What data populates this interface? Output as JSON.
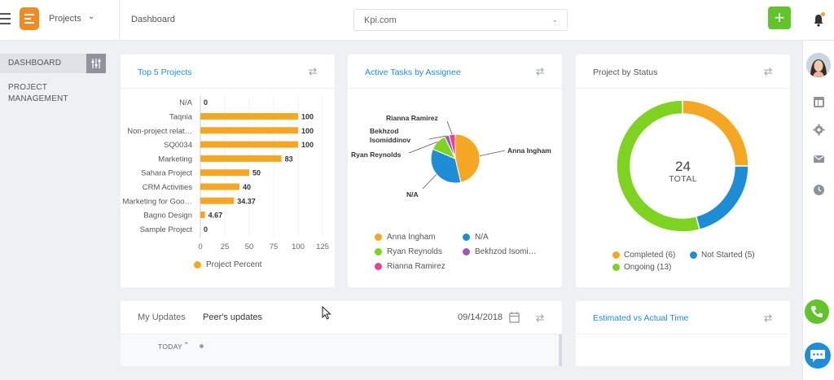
{
  "header": {
    "project_selector": "Projects",
    "breadcrumb": "Dashboard",
    "site_selector": "Kpi.com",
    "add_label": "+"
  },
  "sidebar": {
    "items": [
      {
        "label": "DASHBOARD",
        "active": true
      },
      {
        "label": "PROJECT MANAGEMENT",
        "active": false
      }
    ]
  },
  "cards": {
    "top_projects": {
      "title": "Top 5 Projects",
      "legend": "Project Percent",
      "bar_color": "#f5a623"
    },
    "active_tasks": {
      "title": "Active Tasks by Assignee",
      "legend": [
        {
          "label": "Anna Ingham",
          "color": "#f5a623"
        },
        {
          "label": "N/A",
          "color": "#1f8dd6"
        },
        {
          "label": "Ryan Reynolds",
          "color": "#7ed321"
        },
        {
          "label": "Bekhzod Isomi…",
          "color": "#9b59b6"
        },
        {
          "label": "Rianna Ramirez",
          "color": "#e84393"
        }
      ]
    },
    "project_status": {
      "title": "Project by Status",
      "total_value": "24",
      "total_label": "TOTAL",
      "legend": [
        {
          "label": "Completed (6)",
          "color": "#f5a623"
        },
        {
          "label": "Not Started (5)",
          "color": "#1f8dd6"
        },
        {
          "label": "Ongoing (13)",
          "color": "#7ed321"
        }
      ]
    },
    "updates": {
      "tab_mine": "My Updates",
      "tab_peers": "Peer's updates",
      "date": "09/14/2018",
      "today_label": "TODAY"
    },
    "estimated": {
      "title": "Estimated vs Actual Time"
    }
  },
  "chart_data": [
    {
      "type": "bar",
      "orientation": "horizontal",
      "categories": [
        "N/A",
        "Taqnia",
        "Non-project relat…",
        "SQ0034",
        "Marketing",
        "Sahara Project",
        "CRM Activities",
        "Marketing for Goo…",
        "Bagno Design",
        "Sample Project"
      ],
      "values": [
        0,
        100,
        100,
        100,
        83,
        50,
        40,
        34.37,
        4.67,
        0
      ],
      "data_labels": [
        "0",
        "100",
        "100",
        "100",
        "83",
        "50",
        "40",
        "34.37",
        "4.67",
        "0"
      ],
      "xlim": [
        0,
        125
      ],
      "xticks": [
        "0",
        "25",
        "50",
        "75",
        "100",
        "125"
      ],
      "series": [
        {
          "name": "Project Percent",
          "color": "#f5a623"
        }
      ],
      "grid": true
    },
    {
      "type": "pie",
      "slices": [
        {
          "label": "Anna Ingham",
          "value": 45,
          "color": "#f5a623"
        },
        {
          "label": "N/A",
          "value": 34,
          "color": "#1f8dd6"
        },
        {
          "label": "Ryan Reynolds",
          "value": 11,
          "color": "#7ed321"
        },
        {
          "label": "Bekhzod Isomiddinov",
          "value": 3,
          "color": "#9b59b6"
        },
        {
          "label": "Rianna Ramirez",
          "value": 4,
          "color": "#e84393"
        }
      ],
      "slice_labels": [
        "Anna Ingham",
        "N/A",
        "Ryan Reynolds",
        "Bekhzod",
        "Isomiddinov",
        "Rianna Ramirez"
      ]
    },
    {
      "type": "pie",
      "donut": true,
      "slices": [
        {
          "label": "Completed",
          "value": 6,
          "color": "#f5a623"
        },
        {
          "label": "Not Started",
          "value": 5,
          "color": "#1f8dd6"
        },
        {
          "label": "Ongoing",
          "value": 13,
          "color": "#7ed321"
        }
      ]
    }
  ]
}
